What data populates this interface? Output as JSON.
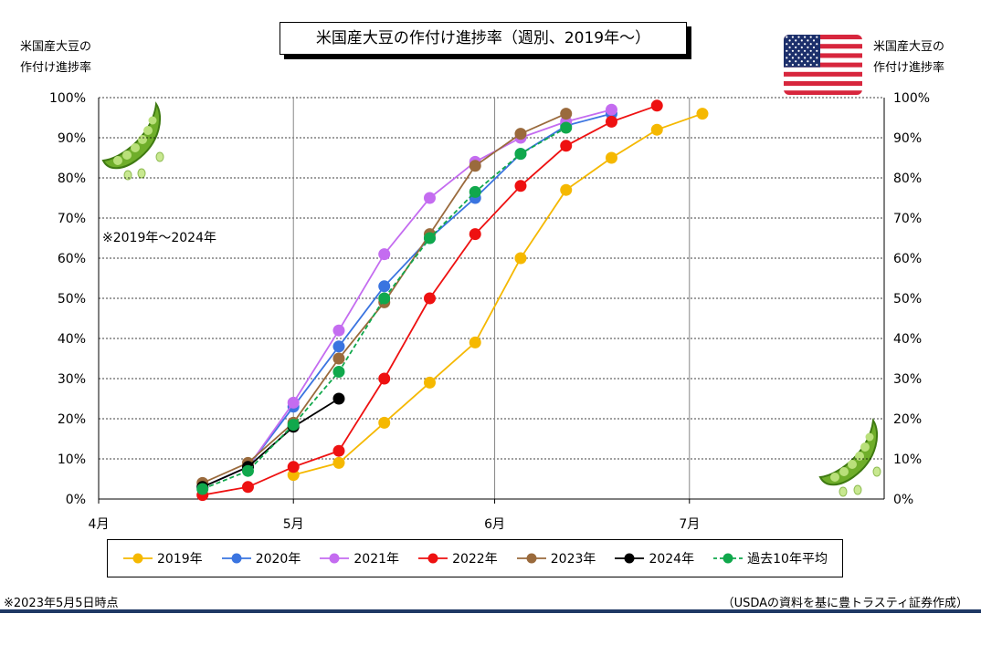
{
  "title": "米国産大豆の作付け進捗率（週別、2019年～）",
  "left_axis_title": "米国産大豆の\n作付け進捗率",
  "right_axis_title": "米国産大豆の\n作付け進捗率",
  "range_note": "※2019年～2024年",
  "footer_left": "※2023年5月5日時点",
  "footer_right": "（USDAの資料を基に豊トラスティ証券作成）",
  "icons": {
    "flag": "us-flag-icon",
    "pea": "edamame-pea-icon"
  },
  "chart_data": {
    "type": "line",
    "title": "米国産大豆の作付け進捗率（週別、2019年～）",
    "xlabel": "",
    "ylabel": "米国産大豆の作付け進捗率",
    "x_ticks": [
      "4月",
      "5月",
      "6月",
      "7月"
    ],
    "x_unit": "day of year",
    "x_tick_days": [
      91,
      121,
      152,
      182
    ],
    "xlim": [
      91,
      212
    ],
    "ylim": [
      0,
      100
    ],
    "y_ticks": [
      "0%",
      "10%",
      "20%",
      "30%",
      "40%",
      "50%",
      "60%",
      "70%",
      "80%",
      "90%",
      "100%"
    ],
    "grid": true,
    "legend_position": "bottom",
    "series": [
      {
        "name": "2019年",
        "color": "#f5b800",
        "dashed": false,
        "x": [
          121,
          128,
          135,
          142,
          149,
          156,
          163,
          170,
          177,
          184
        ],
        "y": [
          6,
          9,
          19,
          29,
          39,
          60,
          77,
          85,
          92,
          96
        ]
      },
      {
        "name": "2020年",
        "color": "#3a74e0",
        "dashed": false,
        "x": [
          107,
          114,
          121,
          128,
          135,
          142,
          149,
          156,
          163,
          170
        ],
        "y": [
          3,
          8,
          23,
          38,
          53,
          65,
          75,
          86,
          93,
          96
        ]
      },
      {
        "name": "2021年",
        "color": "#c46cf0",
        "dashed": false,
        "x": [
          107,
          114,
          121,
          128,
          135,
          142,
          149,
          156,
          163,
          170
        ],
        "y": [
          3,
          8,
          24,
          42,
          61,
          75,
          84,
          90,
          94,
          97
        ]
      },
      {
        "name": "2022年",
        "color": "#ee1111",
        "dashed": false,
        "x": [
          107,
          114,
          121,
          128,
          135,
          142,
          149,
          156,
          163,
          170,
          177
        ],
        "y": [
          1,
          3,
          8,
          12,
          30,
          50,
          66,
          78,
          88,
          94,
          98
        ]
      },
      {
        "name": "2023年",
        "color": "#9a6a3c",
        "dashed": false,
        "x": [
          107,
          114,
          121,
          128,
          135,
          142,
          149,
          156,
          163
        ],
        "y": [
          4,
          9,
          19,
          35,
          49,
          66,
          83,
          91,
          96
        ]
      },
      {
        "name": "2024年",
        "color": "#000000",
        "dashed": false,
        "x": [
          107,
          114,
          121,
          128
        ],
        "y": [
          3,
          8,
          18,
          25
        ]
      },
      {
        "name": "過去10年平均",
        "color": "#10a84c",
        "dashed": true,
        "x": [
          107,
          114,
          121,
          128,
          135,
          142,
          149,
          156,
          163
        ],
        "y": [
          2.5,
          7,
          18.5,
          31.7,
          50,
          65,
          76.5,
          86,
          92.5
        ]
      }
    ]
  }
}
